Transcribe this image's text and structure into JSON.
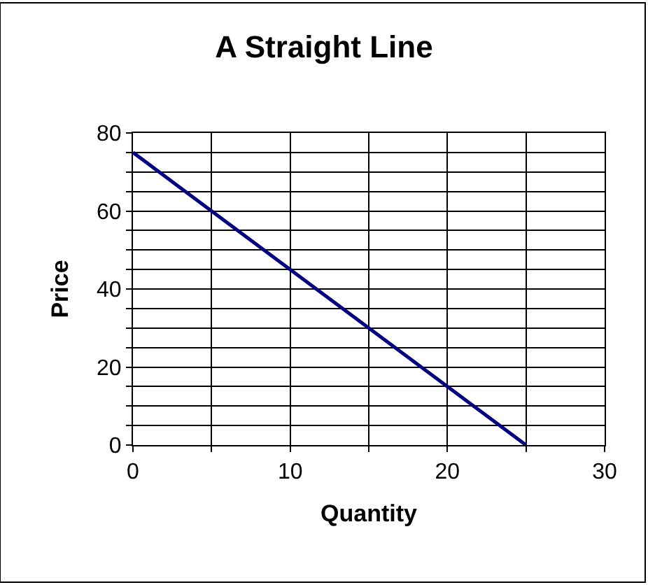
{
  "chart_data": {
    "type": "line",
    "title": "A Straight Line",
    "xlabel": "Quantity",
    "ylabel": "Price",
    "x": [
      0,
      25
    ],
    "series": [
      {
        "color": "#000080",
        "values": [
          75,
          0
        ]
      }
    ],
    "xlim": [
      0,
      30
    ],
    "xticks": [
      0,
      {
        "value": 5,
        "label": null
      },
      10,
      {
        "value": 15,
        "label": null
      },
      20,
      {
        "value": 25,
        "label": null
      },
      30
    ],
    "ylim": [
      0,
      80
    ],
    "yticks": [
      0,
      {
        "value": 5,
        "label": null
      },
      {
        "value": 10,
        "label": null
      },
      {
        "value": 15,
        "label": null
      },
      20,
      {
        "value": 25,
        "label": null
      },
      {
        "value": 30,
        "label": null
      },
      {
        "value": 35,
        "label": null
      },
      40,
      {
        "value": 45,
        "label": null
      },
      {
        "value": 50,
        "label": null
      },
      {
        "value": 55,
        "label": null
      },
      60,
      {
        "value": 65,
        "label": null
      },
      {
        "value": 70,
        "label": null
      },
      {
        "value": 75,
        "label": null
      },
      80
    ],
    "grid": true,
    "legend": false,
    "marker": "none",
    "line_style": "solid"
  }
}
